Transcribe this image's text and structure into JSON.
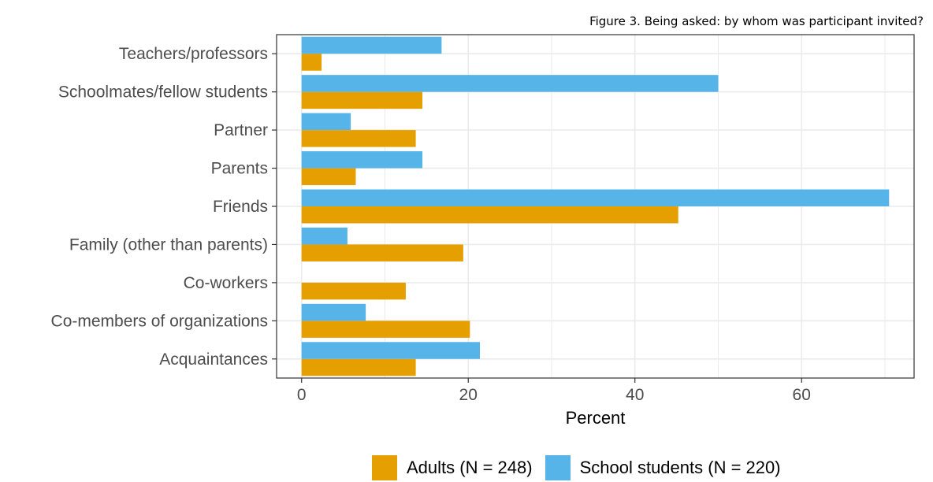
{
  "caption": "Figure 3. Being asked: by whom was participant invited?",
  "colors": {
    "adults": "#E69F00",
    "students": "#56B4E9",
    "grid": "#ebebeb",
    "axis": "#333333"
  },
  "chart_data": {
    "type": "bar",
    "orientation": "horizontal",
    "title": "",
    "xlabel": "Percent",
    "ylabel": "",
    "xlim": [
      -3,
      73.5
    ],
    "xticks": [
      0,
      20,
      40,
      60
    ],
    "grid": true,
    "legend_position": "bottom",
    "categories": [
      "Teachers/professors",
      "Schoolmates/fellow students",
      "Partner",
      "Parents",
      "Friends",
      "Family (other than parents)",
      "Co-workers",
      "Co-members of organizations",
      "Acquaintances"
    ],
    "series": [
      {
        "name": "Adults (N = 248)",
        "values": [
          2.4,
          14.5,
          13.7,
          6.5,
          45.2,
          19.4,
          12.5,
          20.2,
          13.7
        ]
      },
      {
        "name": "School students (N = 220)",
        "values": [
          16.8,
          50.0,
          5.9,
          14.5,
          70.5,
          5.5,
          0,
          7.7,
          21.4
        ]
      }
    ]
  }
}
